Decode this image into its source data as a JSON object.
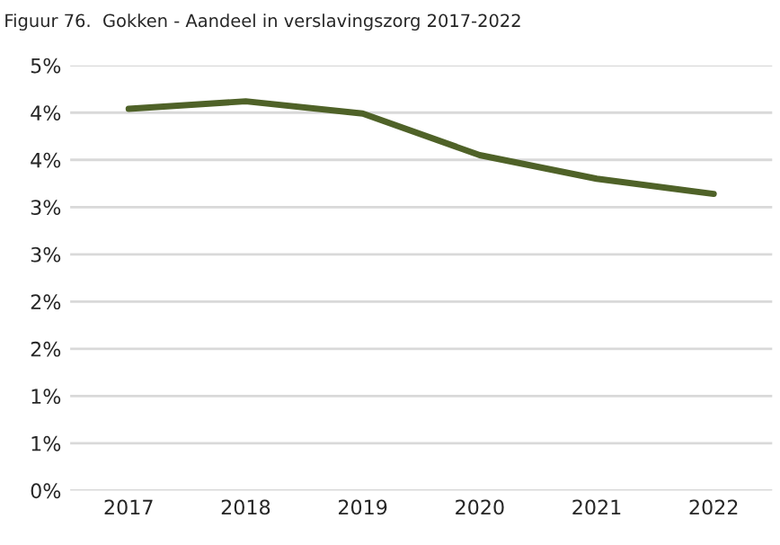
{
  "chart_data": {
    "type": "line",
    "title": "Figuur 76.  Gokken - Aandeel in verslavingszorg 2017-2022",
    "categories": [
      "2017",
      "2018",
      "2019",
      "2020",
      "2021",
      "2022"
    ],
    "series": [
      {
        "color": "#4f6228",
        "values": [
          4.04,
          4.12,
          3.99,
          3.55,
          3.3,
          3.14
        ]
      }
    ],
    "ylim": [
      0,
      4.5
    ],
    "yticks": [
      {
        "value": 0,
        "label": "0%"
      },
      {
        "value": 0.5,
        "label": "1%"
      },
      {
        "value": 1,
        "label": "1%"
      },
      {
        "value": 1.5,
        "label": "2%"
      },
      {
        "value": 2,
        "label": "2%"
      },
      {
        "value": 2.5,
        "label": "3%"
      },
      {
        "value": 3,
        "label": "3%"
      },
      {
        "value": 3.5,
        "label": "4%"
      },
      {
        "value": 4,
        "label": "4%"
      },
      {
        "value": 4.5,
        "label": "5%"
      }
    ],
    "grid": "y",
    "marker": "none",
    "line_style": "solid"
  }
}
